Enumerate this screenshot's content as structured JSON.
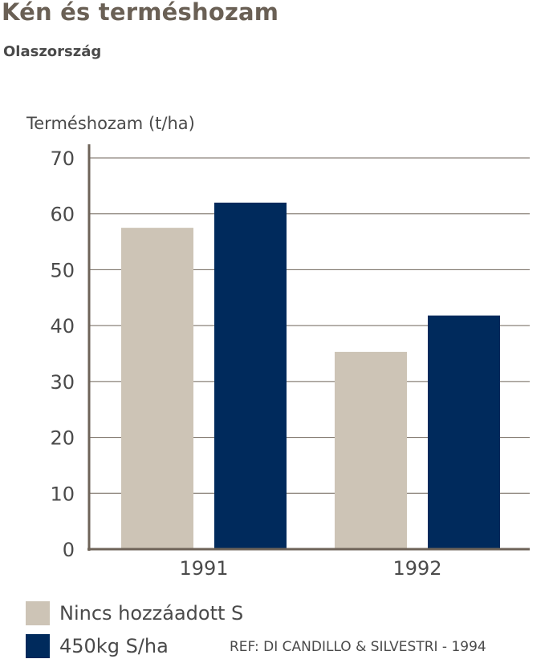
{
  "header": {
    "title": "Kén és terméshozam",
    "subtitle": "Olaszország"
  },
  "colors": {
    "title": "#6a6055",
    "text": "#4a4a4a",
    "axis": "#6e6358",
    "grid": "#6e6358",
    "series_no_s": "#cdc4b6",
    "series_s": "#002a5c"
  },
  "legend": {
    "items": [
      {
        "label": "Nincs hozzáadott S"
      },
      {
        "label": "450kg S/ha"
      }
    ]
  },
  "reference": "REF: DI CANDILLO & SILVESTRI - 1994",
  "chart_data": {
    "type": "bar",
    "title": "Kén és terméshozam",
    "subtitle": "Olaszország",
    "xlabel": "",
    "ylabel": "Terméshozam (t/ha)",
    "categories": [
      "1991",
      "1992"
    ],
    "series": [
      {
        "name": "Nincs hozzáadott S",
        "values": [
          57.5,
          35.3
        ]
      },
      {
        "name": "450kg S/ha",
        "values": [
          62.0,
          41.8
        ]
      }
    ],
    "ylim": [
      0,
      70
    ],
    "yticks": [
      0,
      10,
      20,
      30,
      40,
      50,
      60,
      70
    ],
    "grid": true,
    "legend_position": "bottom-left"
  }
}
